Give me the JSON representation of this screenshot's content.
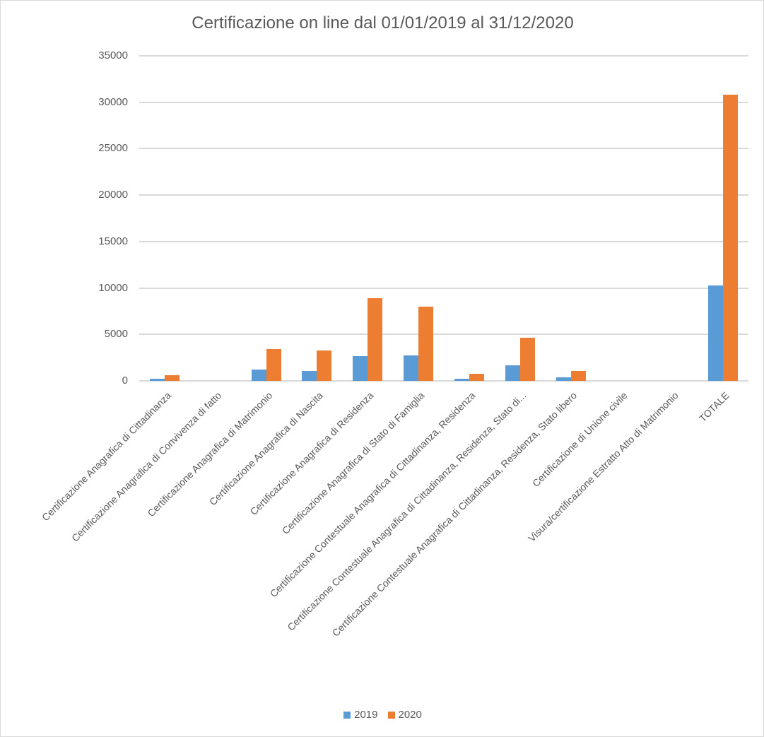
{
  "chart_data": {
    "type": "bar",
    "title": "Certificazione on line dal 01/01/2019 al 31/12/2020",
    "xlabel": "",
    "ylabel": "",
    "ylim": [
      0,
      35000
    ],
    "yticks": [
      0,
      5000,
      10000,
      15000,
      20000,
      25000,
      30000,
      35000
    ],
    "grid": true,
    "legend_position": "bottom",
    "categories": [
      "Certificazione Anagrafica di Cittadinanza",
      "Certificazione Anagrafica di Convivenza di fatto",
      "Certificazione Anagrafica di Matrimonio",
      "Certificazione Anagrafica di Nascita",
      "Certificazione Anagrafica di Residenza",
      "Certificazione Anagrafica di Stato di Famiglia",
      "Certificazione Contestuale Anagrafica di Cittadinanza, Residenza",
      "Certificazione Contestuale Anagrafica di Cittadinanza, Residenza, Stato di...",
      "Certificazione Contestuale Anagrafica di Cittadinanza, Residenza, Stato libero",
      "Certificazione di Unione civile",
      "Visura/certificazione Estratto Atto di Matrimonio",
      "TOTALE"
    ],
    "series": [
      {
        "name": "2019",
        "color": "#5b9bd5",
        "values": [
          230,
          0,
          1200,
          1050,
          2650,
          2750,
          200,
          1650,
          350,
          0,
          0,
          10250
        ]
      },
      {
        "name": "2020",
        "color": "#ed7d31",
        "values": [
          600,
          0,
          3400,
          3250,
          8900,
          8000,
          750,
          4650,
          1050,
          0,
          0,
          30800
        ]
      }
    ]
  },
  "legend": [
    {
      "label": "2019",
      "color": "#5b9bd5"
    },
    {
      "label": "2020",
      "color": "#ed7d31"
    }
  ]
}
